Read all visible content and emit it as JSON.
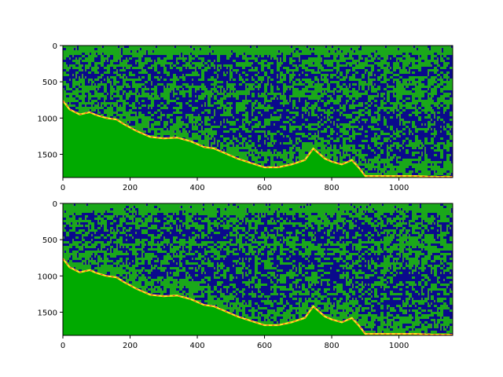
{
  "chart_data": [
    {
      "type": "heatmap",
      "title": "",
      "xlabel": "",
      "ylabel": "",
      "xlim": [
        0,
        1160
      ],
      "ylim": [
        1820,
        0
      ],
      "xticks": [
        0,
        200,
        400,
        600,
        800,
        1000
      ],
      "yticks": [
        0,
        500,
        1000,
        1500
      ],
      "grid": false,
      "colors": {
        "low": "#0a0a8c",
        "mid": "#1aa81a",
        "ground": "#00aa00",
        "bottom_edge_hot": "#ff3333",
        "bottom_edge_warm": "#ffe81a"
      },
      "bottom_profile": {
        "x": [
          0,
          20,
          50,
          80,
          100,
          130,
          160,
          180,
          220,
          260,
          300,
          340,
          380,
          400,
          420,
          450,
          480,
          520,
          560,
          600,
          640,
          680,
          720,
          745,
          760,
          780,
          800,
          830,
          860,
          880,
          900,
          950,
          1000,
          1050,
          1100,
          1160
        ],
        "y": [
          760,
          880,
          950,
          920,
          960,
          1000,
          1020,
          1080,
          1180,
          1260,
          1280,
          1270,
          1320,
          1360,
          1400,
          1420,
          1480,
          1560,
          1620,
          1680,
          1680,
          1640,
          1580,
          1420,
          1480,
          1560,
          1600,
          1640,
          1580,
          1680,
          1800,
          1800,
          1800,
          1800,
          1810,
          1810
        ]
      }
    },
    {
      "type": "heatmap",
      "title": "",
      "xlabel": "",
      "ylabel": "",
      "xlim": [
        0,
        1160
      ],
      "ylim": [
        1820,
        0
      ],
      "xticks": [
        0,
        200,
        400,
        600,
        800,
        1000
      ],
      "yticks": [
        0,
        500,
        1000,
        1500
      ],
      "grid": false,
      "colors": {
        "low": "#0a0a8c",
        "mid": "#1aa81a",
        "ground": "#00aa00",
        "bottom_edge_hot": "#ff3333",
        "bottom_edge_warm": "#ffe81a"
      },
      "bottom_profile": {
        "x": [
          0,
          20,
          50,
          80,
          100,
          130,
          160,
          180,
          220,
          260,
          300,
          340,
          380,
          400,
          420,
          450,
          480,
          520,
          560,
          600,
          640,
          680,
          720,
          745,
          760,
          780,
          800,
          830,
          860,
          880,
          900,
          950,
          1000,
          1050,
          1100,
          1160
        ],
        "y": [
          760,
          880,
          950,
          920,
          960,
          1000,
          1020,
          1080,
          1180,
          1260,
          1280,
          1270,
          1320,
          1360,
          1400,
          1420,
          1480,
          1560,
          1620,
          1680,
          1680,
          1640,
          1580,
          1420,
          1480,
          1560,
          1600,
          1640,
          1580,
          1680,
          1800,
          1800,
          1800,
          1800,
          1810,
          1810
        ]
      }
    }
  ]
}
